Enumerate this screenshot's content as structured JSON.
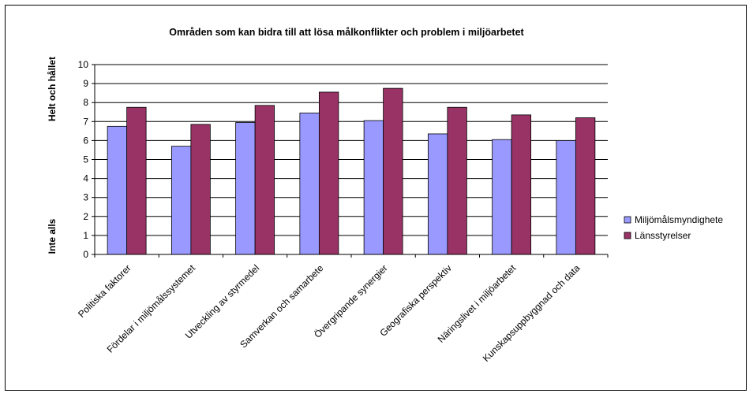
{
  "chart_data": {
    "type": "bar",
    "title": "Områden som kan bidra till att lösa målkonflikter och problem i miljöarbetet",
    "ylabel_top": "Helt och hållet",
    "ylabel_bottom": "Inte alls",
    "ylim": [
      0,
      10
    ],
    "yticks": [
      0,
      1,
      2,
      3,
      4,
      5,
      6,
      7,
      8,
      9,
      10
    ],
    "grid": true,
    "legend_position": "right",
    "categories": [
      "Politiska faktorer",
      "Fördelar i miljömålssystemet",
      "Utveckling av styrmedel",
      "Samverkan och samarbete",
      "Övergripande synergier",
      "Geografiska perspektiv",
      "Näringslivet i miljöarbetet",
      "Kunskapsuppbyggnad och data"
    ],
    "series": [
      {
        "name": "Miljömålsmyndighete",
        "color": "#9999ff",
        "values": [
          6.75,
          5.7,
          6.95,
          7.45,
          7.05,
          6.35,
          6.05,
          6.0
        ]
      },
      {
        "name": "Länsstyrelser",
        "color": "#993366",
        "values": [
          7.75,
          6.85,
          7.85,
          8.55,
          8.75,
          7.75,
          7.35,
          7.2
        ]
      }
    ]
  }
}
